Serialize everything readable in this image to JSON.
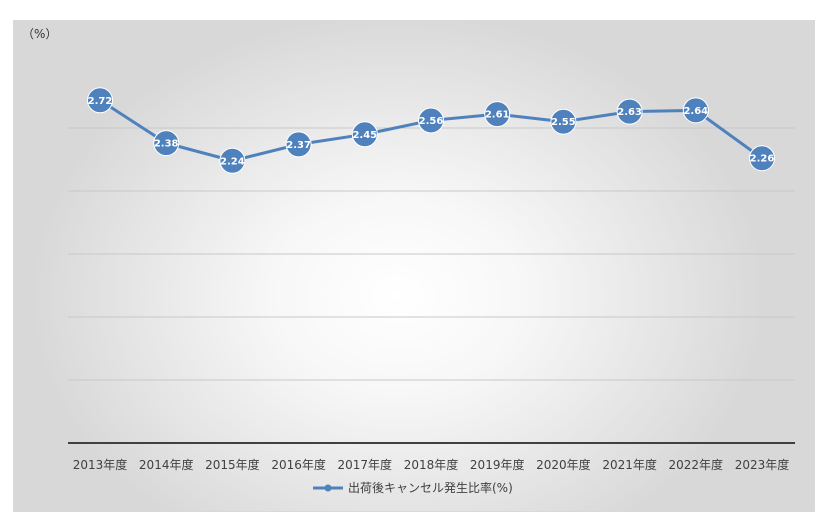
{
  "chart_data": {
    "type": "line",
    "unit_label": "（%）",
    "categories": [
      "2013年度",
      "2014年度",
      "2015年度",
      "2016年度",
      "2017年度",
      "2018年度",
      "2019年度",
      "2020年度",
      "2021年度",
      "2022年度",
      "2023年度"
    ],
    "series": [
      {
        "name": "出荷後キャンセル発生比率(%)",
        "values": [
          2.72,
          2.38,
          2.24,
          2.37,
          2.45,
          2.56,
          2.61,
          2.55,
          2.63,
          2.64,
          2.26
        ],
        "color": "#4f81bd"
      }
    ],
    "ylim": [
      0,
      3.5
    ],
    "y_gridlines": [
      0.5,
      1.0,
      1.5,
      2.0,
      2.5,
      3.0
    ],
    "grid": true,
    "legend_position": "bottom",
    "data_labels": true
  },
  "colors": {
    "series": "#4f81bd",
    "gridline": "#c8c8c8",
    "axis": "#404040",
    "background_center": "#ffffff",
    "background_edge": "#d8d8d8"
  }
}
